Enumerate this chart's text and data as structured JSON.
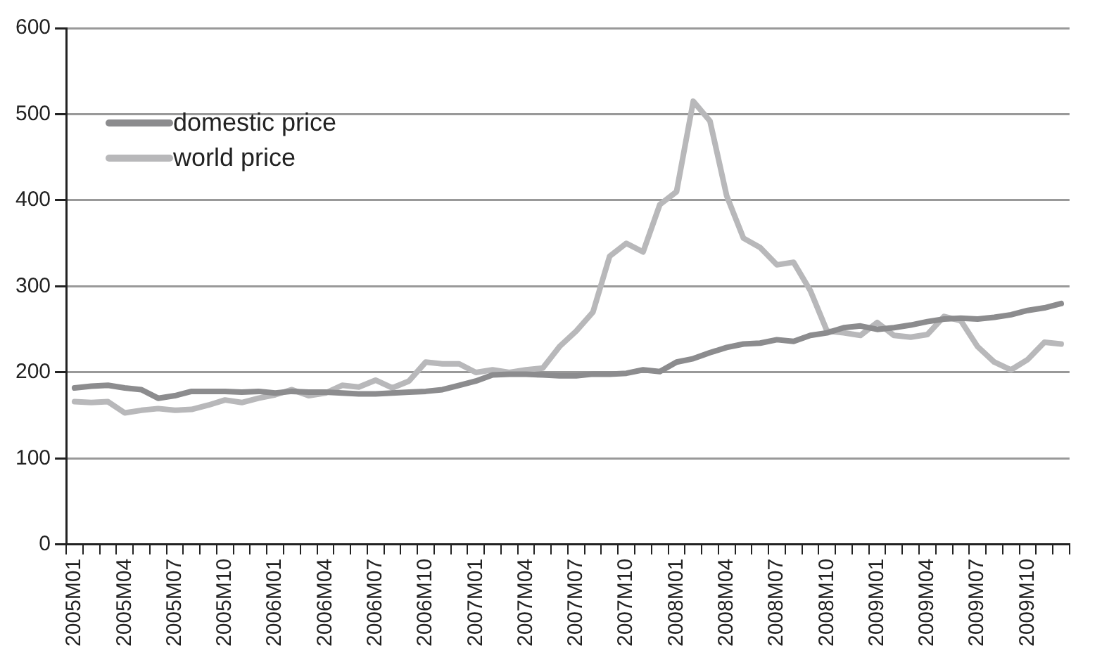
{
  "chart_data": {
    "type": "line",
    "categories": [
      "2005M01",
      null,
      null,
      "2005M04",
      null,
      null,
      "2005M07",
      null,
      null,
      "2005M10",
      null,
      null,
      "2006M01",
      null,
      null,
      "2006M04",
      null,
      null,
      "2006M07",
      null,
      null,
      "2006M10",
      null,
      null,
      "2007M01",
      null,
      null,
      "2007M04",
      null,
      null,
      "2007M07",
      null,
      null,
      "2007M10",
      null,
      null,
      "2008M01",
      null,
      null,
      "2008M04",
      null,
      null,
      "2008M07",
      null,
      null,
      "2008M10",
      null,
      null,
      "2009M01",
      null,
      null,
      "2009M04",
      null,
      null,
      "2009M07",
      null,
      null,
      "2009M10",
      null,
      null
    ],
    "series": [
      {
        "name": "domestic price",
        "color": "#8c8c8e",
        "values": [
          182,
          184,
          185,
          182,
          180,
          170,
          173,
          178,
          178,
          178,
          177,
          178,
          176,
          178,
          177,
          177,
          176,
          175,
          175,
          176,
          177,
          178,
          180,
          185,
          190,
          197,
          198,
          198,
          197,
          196,
          196,
          198,
          198,
          199,
          203,
          201,
          212,
          216,
          223,
          229,
          233,
          234,
          238,
          236,
          243,
          246,
          252,
          254,
          250,
          252,
          255,
          259,
          262,
          263,
          262,
          264,
          267,
          272,
          275,
          280
        ]
      },
      {
        "name": "world price",
        "color": "#b8b8ba",
        "values": [
          166,
          165,
          166,
          153,
          156,
          158,
          156,
          157,
          162,
          168,
          165,
          170,
          174,
          180,
          173,
          176,
          185,
          183,
          191,
          182,
          190,
          212,
          210,
          210,
          200,
          203,
          200,
          203,
          205,
          230,
          248,
          270,
          335,
          350,
          340,
          395,
          410,
          515,
          492,
          405,
          356,
          345,
          325,
          328,
          295,
          248,
          246,
          243,
          258,
          243,
          241,
          244,
          265,
          260,
          230,
          212,
          203,
          215,
          235,
          233
        ]
      }
    ],
    "ylim": [
      0,
      600
    ],
    "yticks": [
      0,
      100,
      200,
      300,
      400,
      500,
      600
    ],
    "grid": "y",
    "legend": "top left",
    "marker": "none",
    "line_style": "solid"
  }
}
